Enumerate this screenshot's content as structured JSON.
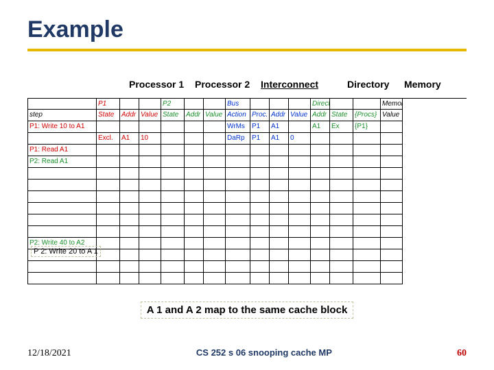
{
  "title": "Example",
  "top_labels": {
    "proc1": "Processor 1",
    "proc2": "Processor 2",
    "interconnect": "Interconnect",
    "directory": "Directory",
    "memory": "Memory"
  },
  "header_row1": {
    "step": "",
    "p1": "P1",
    "p2": "P2",
    "bus": "Bus",
    "dir": "Directory",
    "mem": "Memor"
  },
  "header_row2": {
    "step": "step",
    "p1_state": "State",
    "p1_addr": "Addr",
    "p1_value": "Value",
    "p2_state": "State",
    "p2_addr": "Addr",
    "p2_value": "Value",
    "bus_action": "Action",
    "bus_proc": "Proc.",
    "bus_addr": "Addr",
    "bus_value": "Value",
    "dir_addr": "Addr",
    "dir_state": "State",
    "dir_procs": "{Procs}",
    "mem_value": "Value"
  },
  "rows": [
    {
      "step": "P1: Write 10 to A1",
      "color": "red",
      "p1_state": "",
      "p1_addr": "",
      "p1_value": "",
      "p2_state": "",
      "p2_addr": "",
      "p2_value": "",
      "bus_action": "WrMs",
      "bus_proc": "P1",
      "bus_addr": "A1",
      "bus_value": "",
      "bus_color": "blue",
      "dir_addr": "A1",
      "dir_state": "Ex",
      "dir_procs": "{P1}",
      "dir_color": "green",
      "mem_value": ""
    },
    {
      "step": "",
      "color": "",
      "p1_state": "Excl.",
      "p1_addr": "A1",
      "p1_value": "10",
      "p1_color": "red",
      "p2_state": "",
      "p2_addr": "",
      "p2_value": "",
      "bus_action": "DaRp",
      "bus_proc": "P1",
      "bus_addr": "A1",
      "bus_value": "0",
      "bus_color": "blue",
      "dir_addr": "",
      "dir_state": "",
      "dir_procs": "",
      "mem_value": ""
    },
    {
      "step": "P1: Read A1",
      "color": "red",
      "p1_state": "",
      "p1_addr": "",
      "p1_value": "",
      "p2_state": "",
      "p2_addr": "",
      "p2_value": "",
      "bus_action": "",
      "bus_proc": "",
      "bus_addr": "",
      "bus_value": "",
      "dir_addr": "",
      "dir_state": "",
      "dir_procs": "",
      "mem_value": ""
    },
    {
      "step": "P2: Read A1",
      "color": "green",
      "p1_state": "",
      "p1_addr": "",
      "p1_value": "",
      "p2_state": "",
      "p2_addr": "",
      "p2_value": "",
      "bus_action": "",
      "bus_proc": "",
      "bus_addr": "",
      "bus_value": "",
      "dir_addr": "",
      "dir_state": "",
      "dir_procs": "",
      "mem_value": ""
    }
  ],
  "mid_step_label": "P 2: Write 20 to A 1",
  "last_step": "P2: Write 40 to A2",
  "caption": "A 1 and A 2 map to the same cache block",
  "footer": {
    "date": "12/18/2021",
    "title": "CS 252 s 06 snooping cache MP",
    "page": "60"
  },
  "colors": {
    "title": "#1f3864",
    "accent": "#e6b800",
    "red": "#d00000",
    "green": "#1a8f2a",
    "blue": "#0033cc"
  }
}
